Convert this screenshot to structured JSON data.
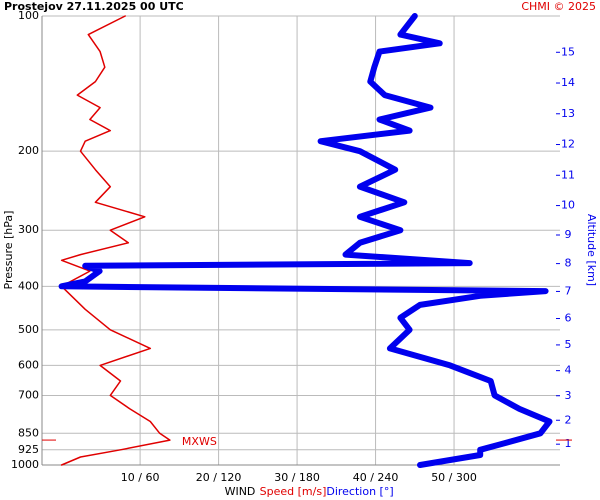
{
  "chart_data": {
    "type": "line",
    "title": "Prostejov    27.11.2025 00 UTC",
    "credit": "CHMI © 2025",
    "y_label": "Pressure [hPa]",
    "y2_label": "Altitude [km]",
    "x_label": "WIND",
    "annotation": "MXWS",
    "y_log": true,
    "ylim": [
      100,
      1000
    ],
    "yticks": [
      100,
      200,
      300,
      400,
      500,
      600,
      700,
      850,
      925,
      1000
    ],
    "y2ticks": [
      1,
      2,
      3,
      4,
      5,
      6,
      7,
      8,
      9,
      10,
      11,
      12,
      13,
      14,
      15
    ],
    "xlim": [
      -2.5,
      63.5
    ],
    "x2lim": [
      -15,
      381
    ],
    "xticks": [
      {
        "value": 10,
        "label": "10 / 60"
      },
      {
        "value": 20,
        "label": "20 / 120"
      },
      {
        "value": 30,
        "label": "30 / 180"
      },
      {
        "value": 40,
        "label": "40 / 240"
      },
      {
        "value": 50,
        "label": "50 / 300"
      }
    ],
    "grid": true,
    "series": [
      {
        "name": "Speed [m/s]",
        "color": "#e00000",
        "pressure": [
          100,
          110,
          120,
          130,
          140,
          150,
          160,
          170,
          180,
          190,
          200,
          220,
          240,
          260,
          280,
          300,
          320,
          340,
          350,
          370,
          400,
          450,
          500,
          550,
          600,
          650,
          700,
          750,
          800,
          850,
          880,
          925,
          960,
          1000
        ],
        "values": [
          8.1,
          3.4,
          4.9,
          5.5,
          4.3,
          2.0,
          4.9,
          3.6,
          6.2,
          3.0,
          2.4,
          4.3,
          6.2,
          4.3,
          10.6,
          6.2,
          8.5,
          2.4,
          0,
          3.6,
          0,
          3.0,
          6.2,
          11.3,
          4.9,
          7.5,
          6.2,
          8.7,
          11.3,
          12.5,
          13.8,
          7.5,
          2.4,
          0
        ]
      },
      {
        "name": "Direction [°]",
        "color": "#0000ee",
        "axis": "x2",
        "pressure": [
          100,
          110,
          115,
          120,
          130,
          140,
          150,
          160,
          170,
          180,
          190,
          200,
          220,
          240,
          260,
          280,
          300,
          320,
          340,
          355,
          360,
          370,
          390,
          400,
          410,
          420,
          440,
          470,
          500,
          550,
          600,
          650,
          700,
          750,
          800,
          850,
          900,
          925,
          950,
          1000
        ],
        "values": [
          270,
          259,
          289,
          243,
          239,
          236,
          247,
          282,
          243,
          266,
          198,
          228,
          255,
          228,
          262,
          228,
          259,
          228,
          217,
          312,
          18,
          29,
          18,
          0,
          370,
          320,
          274,
          259,
          266,
          251,
          297,
          328,
          331,
          350,
          373,
          366,
          335,
          320,
          320,
          274
        ]
      }
    ]
  }
}
